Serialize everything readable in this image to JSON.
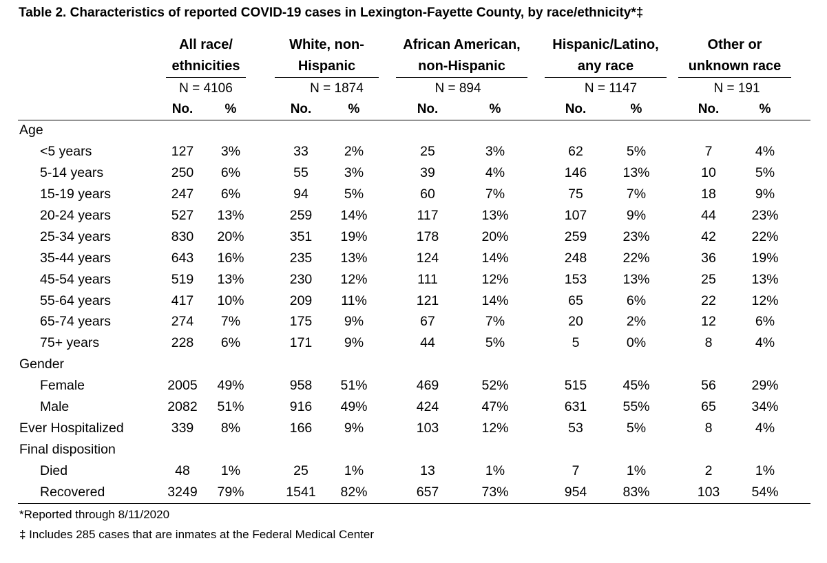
{
  "title": "Table 2. Characteristics of reported COVID-19 cases in Lexington-Fayette County, by race/ethnicity*‡",
  "groups": [
    {
      "line1": "All race/",
      "line2": "ethnicities",
      "n": "N = 4106"
    },
    {
      "line1": "White, non-",
      "line2": "Hispanic",
      "n": "N = 1874"
    },
    {
      "line1": "African American,",
      "line2": "non-Hispanic",
      "n": "N = 894"
    },
    {
      "line1": "Hispanic/Latino,",
      "line2": "any race",
      "n": "N = 1147"
    },
    {
      "line1": "Other or",
      "line2": "unknown race",
      "n": "N = 191"
    }
  ],
  "sub_headers": {
    "no": "No.",
    "pct": "%"
  },
  "rows": [
    {
      "label": "Age",
      "indent": false,
      "values": []
    },
    {
      "label": "<5 years",
      "indent": true,
      "values": [
        "127",
        "3%",
        "33",
        "2%",
        "25",
        "3%",
        "62",
        "5%",
        "7",
        "4%"
      ]
    },
    {
      "label": "5-14 years",
      "indent": true,
      "values": [
        "250",
        "6%",
        "55",
        "3%",
        "39",
        "4%",
        "146",
        "13%",
        "10",
        "5%"
      ]
    },
    {
      "label": "15-19 years",
      "indent": true,
      "values": [
        "247",
        "6%",
        "94",
        "5%",
        "60",
        "7%",
        "75",
        "7%",
        "18",
        "9%"
      ]
    },
    {
      "label": "20-24 years",
      "indent": true,
      "values": [
        "527",
        "13%",
        "259",
        "14%",
        "117",
        "13%",
        "107",
        "9%",
        "44",
        "23%"
      ]
    },
    {
      "label": "25-34 years",
      "indent": true,
      "values": [
        "830",
        "20%",
        "351",
        "19%",
        "178",
        "20%",
        "259",
        "23%",
        "42",
        "22%"
      ]
    },
    {
      "label": "35-44 years",
      "indent": true,
      "values": [
        "643",
        "16%",
        "235",
        "13%",
        "124",
        "14%",
        "248",
        "22%",
        "36",
        "19%"
      ]
    },
    {
      "label": "45-54 years",
      "indent": true,
      "values": [
        "519",
        "13%",
        "230",
        "12%",
        "111",
        "12%",
        "153",
        "13%",
        "25",
        "13%"
      ]
    },
    {
      "label": "55-64 years",
      "indent": true,
      "values": [
        "417",
        "10%",
        "209",
        "11%",
        "121",
        "14%",
        "65",
        "6%",
        "22",
        "12%"
      ]
    },
    {
      "label": "65-74 years",
      "indent": true,
      "values": [
        "274",
        "7%",
        "175",
        "9%",
        "67",
        "7%",
        "20",
        "2%",
        "12",
        "6%"
      ]
    },
    {
      "label": "75+ years",
      "indent": true,
      "values": [
        "228",
        "6%",
        "171",
        "9%",
        "44",
        "5%",
        "5",
        "0%",
        "8",
        "4%"
      ]
    },
    {
      "label": "Gender",
      "indent": false,
      "values": []
    },
    {
      "label": "Female",
      "indent": true,
      "values": [
        "2005",
        "49%",
        "958",
        "51%",
        "469",
        "52%",
        "515",
        "45%",
        "56",
        "29%"
      ]
    },
    {
      "label": "Male",
      "indent": true,
      "values": [
        "2082",
        "51%",
        "916",
        "49%",
        "424",
        "47%",
        "631",
        "55%",
        "65",
        "34%"
      ]
    },
    {
      "label": "Ever Hospitalized",
      "indent": false,
      "values": [
        "339",
        "8%",
        "166",
        "9%",
        "103",
        "12%",
        "53",
        "5%",
        "8",
        "4%"
      ]
    },
    {
      "label": "Final disposition",
      "indent": false,
      "values": []
    },
    {
      "label": "Died",
      "indent": true,
      "values": [
        "48",
        "1%",
        "25",
        "1%",
        "13",
        "1%",
        "7",
        "1%",
        "2",
        "1%"
      ]
    },
    {
      "label": "Recovered",
      "indent": true,
      "values": [
        "3249",
        "79%",
        "1541",
        "82%",
        "657",
        "73%",
        "954",
        "83%",
        "103",
        "54%"
      ]
    }
  ],
  "footnotes": [
    "*Reported through 8/11/2020",
    "‡ Includes 285 cases that are inmates at the Federal Medical Center"
  ]
}
